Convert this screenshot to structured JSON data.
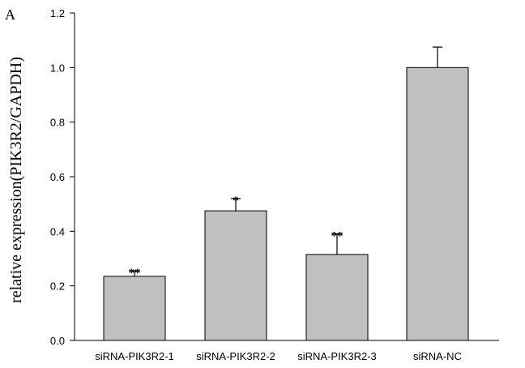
{
  "panel_label": "A",
  "chart_data": {
    "type": "bar",
    "title": "",
    "xlabel": "",
    "ylabel": "relative expression(PIK3R2/GAPDH)",
    "categories": [
      "siRNA-PIK3R2-1",
      "siRNA-PIK3R2-2",
      "siRNA-PIK3R2-3",
      "siRNA-NC"
    ],
    "values": [
      0.235,
      0.475,
      0.315,
      1.0
    ],
    "errors": [
      0.02,
      0.045,
      0.075,
      0.075
    ],
    "significance": [
      "**",
      "*",
      "**",
      ""
    ],
    "ylim": [
      0,
      1.2
    ],
    "yticks": [
      "0.0",
      "0.2",
      "0.4",
      "0.6",
      "0.8",
      "1.0",
      "1.2"
    ],
    "bar_color": "#c0c0c0",
    "grid": false
  }
}
